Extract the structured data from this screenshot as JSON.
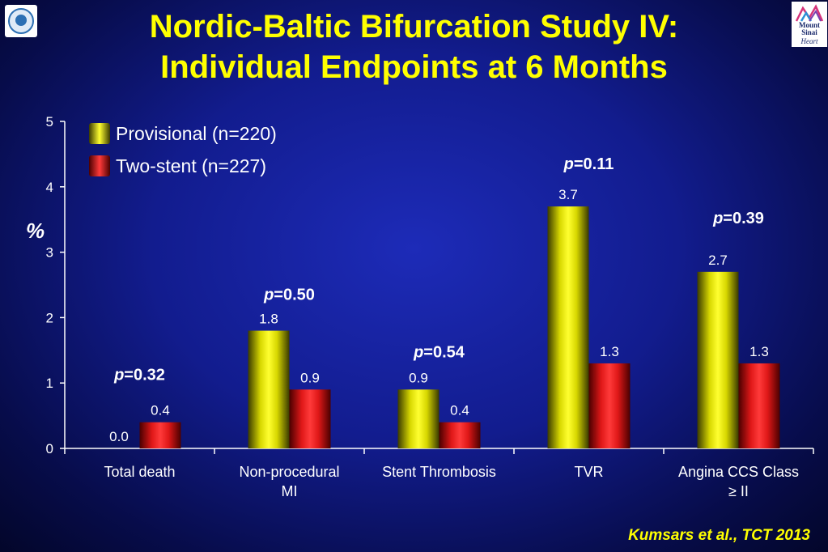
{
  "title_line1": "Nordic-Baltic Bifurcation Study IV:",
  "title_line2": "Individual Endpoints at 6 Months",
  "logo_right_text": [
    "Mount",
    "Sinai",
    "Heart"
  ],
  "citation": "Kumsars et al., TCT 2013",
  "colors": {
    "title": "#ffff00",
    "provisional": "#ffff00",
    "two_stent": "#ff2020",
    "background": "#121c8e"
  },
  "chart_data": {
    "type": "bar",
    "categories": [
      "Total death",
      "Non-procedural MI",
      "Stent Thrombosis",
      "TVR",
      "Angina CCS Class ≥ II"
    ],
    "category_lines": [
      [
        "Total death"
      ],
      [
        "Non-procedural",
        "MI"
      ],
      [
        "Stent Thrombosis"
      ],
      [
        "TVR"
      ],
      [
        "Angina CCS Class",
        "≥ II"
      ]
    ],
    "series": [
      {
        "name": "Provisional (n=220)",
        "values": [
          0.0,
          1.8,
          0.9,
          3.7,
          2.7
        ],
        "labels": [
          "0.0",
          "1.8",
          "0.9",
          "3.7",
          "2.7"
        ]
      },
      {
        "name": "Two-stent (n=227)",
        "values": [
          0.4,
          0.9,
          0.4,
          1.3,
          1.3
        ],
        "labels": [
          "0.4",
          "0.9",
          "0.4",
          "1.3",
          "1.3"
        ]
      }
    ],
    "p_values": [
      "0.32",
      "0.50",
      "0.54",
      "0.11",
      "0.39"
    ],
    "p_prefix": "p",
    "ylabel": "%",
    "ylim": [
      0,
      5
    ],
    "yticks": [
      "0",
      "1",
      "2",
      "3",
      "4",
      "5"
    ],
    "legend_position": "top-left",
    "grid": false
  }
}
